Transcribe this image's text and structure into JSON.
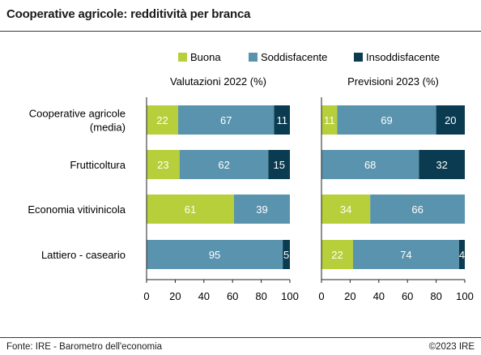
{
  "title": "Cooperative agricole: redditività per branca",
  "source": "Fonte: IRE - Barometro dell'economia",
  "copyright": "©2023 IRE",
  "colors": {
    "Buona": "#b7cf3b",
    "Soddisfacente": "#5a93ad",
    "Insoddisfacente": "#0b3b50"
  },
  "chart_data": {
    "type": "bar",
    "orientation": "horizontal",
    "stacked": true,
    "legend": [
      "Buona",
      "Soddisfacente",
      "Insoddisfacente"
    ],
    "categories": [
      "Cooperative agricole\n(media)",
      "Frutticoltura",
      "Economia vitivinicola",
      "Lattiero - caseario"
    ],
    "xlim": [
      0,
      100
    ],
    "xticks": [
      0,
      20,
      40,
      60,
      80,
      100
    ],
    "panels": [
      {
        "title": "Valutazioni 2022 (%)",
        "series": [
          {
            "name": "Buona",
            "values": [
              22,
              23,
              61,
              0
            ]
          },
          {
            "name": "Soddisfacente",
            "values": [
              67,
              62,
              39,
              95
            ]
          },
          {
            "name": "Insoddisfacente",
            "values": [
              11,
              15,
              0,
              5
            ]
          }
        ]
      },
      {
        "title": "Previsioni 2023 (%)",
        "series": [
          {
            "name": "Buona",
            "values": [
              11,
              0,
              34,
              22
            ]
          },
          {
            "name": "Soddisfacente",
            "values": [
              69,
              68,
              66,
              74
            ]
          },
          {
            "name": "Insoddisfacente",
            "values": [
              20,
              32,
              0,
              4
            ]
          }
        ]
      }
    ]
  }
}
